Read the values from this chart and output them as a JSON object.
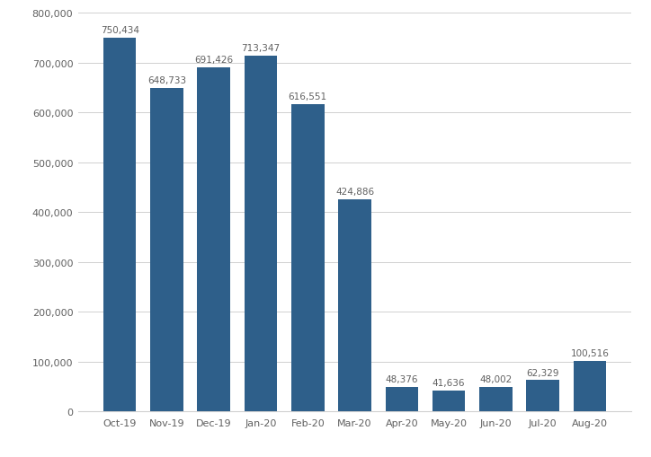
{
  "categories": [
    "Oct-19",
    "Nov-19",
    "Dec-19",
    "Jan-20",
    "Feb-20",
    "Mar-20",
    "Apr-20",
    "May-20",
    "Jun-20",
    "Jul-20",
    "Aug-20"
  ],
  "values": [
    750434,
    648733,
    691426,
    713347,
    616551,
    424886,
    48376,
    41636,
    48002,
    62329,
    100516
  ],
  "labels": [
    "750,434",
    "648,733",
    "691,426",
    "713,347",
    "616,551",
    "424,886",
    "48,376",
    "41,636",
    "48,002",
    "62,329",
    "100,516"
  ],
  "bar_color": "#2e5f8a",
  "background_color": "#ffffff",
  "ylim": [
    0,
    800000
  ],
  "yticks": [
    0,
    100000,
    200000,
    300000,
    400000,
    500000,
    600000,
    700000,
    800000
  ],
  "ytick_labels": [
    "0",
    "100,000",
    "200,000",
    "300,000",
    "400,000",
    "500,000",
    "600,000",
    "700,000",
    "800,000"
  ],
  "grid_color": "#d0d0d0",
  "label_fontsize": 7.5,
  "tick_fontsize": 8,
  "label_color": "#606060"
}
